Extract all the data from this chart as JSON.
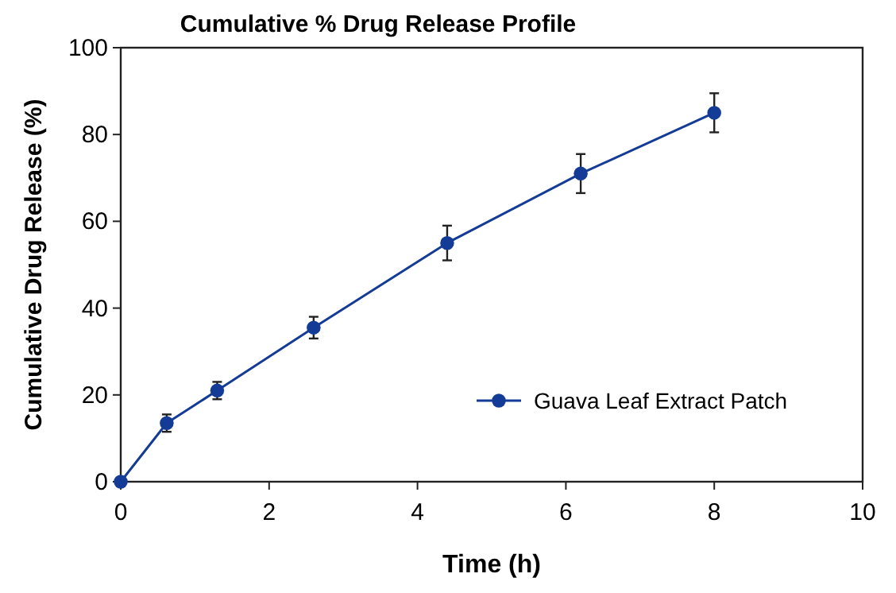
{
  "chart_data": {
    "type": "line",
    "title": "Cumulative % Drug Release Profile",
    "xlabel": "Time (h)",
    "ylabel": "Cumulative Drug Release (%)",
    "x": [
      0,
      0.62,
      1.3,
      2.6,
      4.4,
      6.2,
      8
    ],
    "series": [
      {
        "name": "Guava Leaf Extract Patch",
        "color": "#143c96",
        "values": [
          0,
          13.5,
          21,
          35.5,
          55,
          71,
          85
        ],
        "errors": [
          null,
          2,
          2,
          2.5,
          4,
          4.5,
          4.5
        ]
      }
    ],
    "xlim": [
      0,
      10
    ],
    "xticks": [
      0,
      2,
      4,
      6,
      8,
      10
    ],
    "ylim": [
      0,
      100
    ],
    "yticks": [
      0,
      20,
      40,
      60,
      80,
      100
    ],
    "grid": false,
    "legend": "right",
    "marker": "circle",
    "line_style": "solid"
  }
}
